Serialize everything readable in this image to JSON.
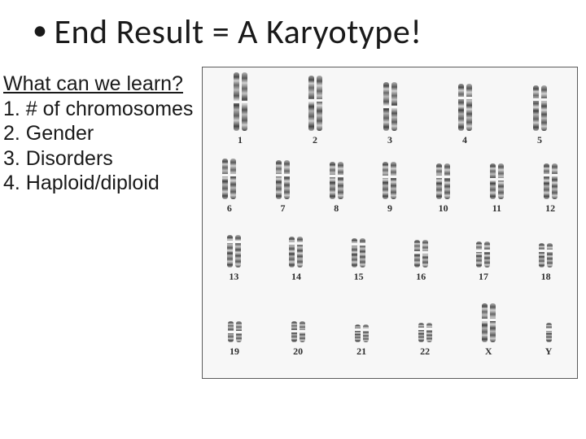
{
  "title": "End Result = A Karyotype!",
  "left": {
    "heading": "What can we learn?",
    "items": [
      "1. # of chromosomes",
      "2. Gender",
      "3. Disorders",
      "4. Haploid/diploid"
    ]
  },
  "karyotype": {
    "label_fontsize": 12,
    "label_color": "#2f2f2f",
    "border_color": "#5b5b5b",
    "background": "#f7f7f7",
    "rows": [
      {
        "height": 72,
        "cells": [
          {
            "label": "1",
            "h": 72,
            "cent": 48,
            "n": 2
          },
          {
            "label": "2",
            "h": 68,
            "cent": 42,
            "n": 2
          },
          {
            "label": "3",
            "h": 60,
            "cent": 48,
            "n": 2
          },
          {
            "label": "4",
            "h": 58,
            "cent": 28,
            "n": 2
          },
          {
            "label": "5",
            "h": 56,
            "cent": 28,
            "n": 2
          }
        ]
      },
      {
        "height": 52,
        "cells": [
          {
            "label": "6",
            "h": 50,
            "cent": 38,
            "n": 2
          },
          {
            "label": "7",
            "h": 48,
            "cent": 36,
            "n": 2
          },
          {
            "label": "8",
            "h": 46,
            "cent": 34,
            "n": 2
          },
          {
            "label": "9",
            "h": 46,
            "cent": 38,
            "n": 2
          },
          {
            "label": "10",
            "h": 44,
            "cent": 34,
            "n": 2
          },
          {
            "label": "11",
            "h": 44,
            "cent": 40,
            "n": 2
          },
          {
            "label": "12",
            "h": 44,
            "cent": 30,
            "n": 2
          }
        ]
      },
      {
        "height": 42,
        "cells": [
          {
            "label": "13",
            "h": 40,
            "cent": 18,
            "n": 2
          },
          {
            "label": "14",
            "h": 38,
            "cent": 18,
            "n": 2
          },
          {
            "label": "15",
            "h": 36,
            "cent": 18,
            "n": 2
          },
          {
            "label": "16",
            "h": 34,
            "cent": 40,
            "n": 2
          },
          {
            "label": "17",
            "h": 32,
            "cent": 32,
            "n": 2
          },
          {
            "label": "18",
            "h": 30,
            "cent": 28,
            "n": 2
          }
        ]
      },
      {
        "height": 44,
        "cells": [
          {
            "label": "19",
            "h": 26,
            "cent": 46,
            "n": 2
          },
          {
            "label": "20",
            "h": 26,
            "cent": 44,
            "n": 2
          },
          {
            "label": "21",
            "h": 22,
            "cent": 24,
            "n": 2
          },
          {
            "label": "22",
            "h": 24,
            "cent": 24,
            "n": 2
          },
          {
            "label": "X",
            "h": 48,
            "cent": 40,
            "n": 2
          },
          {
            "label": "Y",
            "h": 24,
            "cent": 30,
            "n": 1
          }
        ]
      }
    ]
  }
}
